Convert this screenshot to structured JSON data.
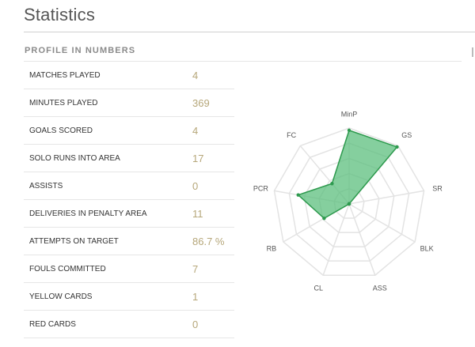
{
  "page": {
    "title": "Statistics"
  },
  "profile": {
    "section_title": "PROFILE IN NUMBERS",
    "rows": [
      {
        "label": "MATCHES PLAYED",
        "value": "4"
      },
      {
        "label": "MINUTES PLAYED",
        "value": "369"
      },
      {
        "label": "GOALS SCORED",
        "value": "4"
      },
      {
        "label": "SOLO RUNS INTO AREA",
        "value": "17"
      },
      {
        "label": "ASSISTS",
        "value": "0"
      },
      {
        "label": "DELIVERIES IN PENALTY AREA",
        "value": "11"
      },
      {
        "label": "ATTEMPTS ON TARGET",
        "value": "86.7 %"
      },
      {
        "label": "FOULS COMMITTED",
        "value": "7"
      },
      {
        "label": "YELLOW CARDS",
        "value": "1"
      },
      {
        "label": "RED CARDS",
        "value": "0"
      }
    ]
  },
  "radar": {
    "fill_color": "#5cbf7e",
    "line_color": "#2e9a4e",
    "grid_color": "#e3e3e3",
    "axes": [
      {
        "label": "MinP",
        "value": 0.97
      },
      {
        "label": "GS",
        "value": 0.98
      },
      {
        "label": "SR",
        "value": 0.0
      },
      {
        "label": "BLK",
        "value": 0.0
      },
      {
        "label": "ASS",
        "value": 0.0
      },
      {
        "label": "CL",
        "value": 0.0
      },
      {
        "label": "RB",
        "value": 0.38
      },
      {
        "label": "PCR",
        "value": 0.68
      },
      {
        "label": "FC",
        "value": 0.35
      }
    ]
  }
}
